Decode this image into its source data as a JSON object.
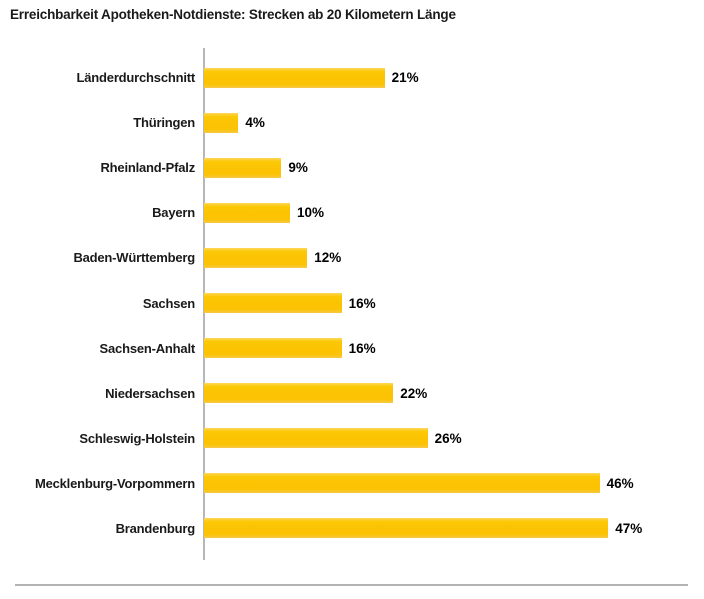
{
  "page": {
    "background": "#ffffff"
  },
  "header": {
    "title": "Erreichbarkeit Apotheken-Notdienste: Strecken ab 20 Kilometern Länge"
  },
  "chart_data": {
    "type": "bar",
    "orientation": "horizontal",
    "title": "Erreichbarkeit Apotheken-Notdienste: Strecken ab 20 Kilometern Länge",
    "categories": [
      "Länderdurchschnitt",
      "Thüringen",
      "Rheinland-Pfalz",
      "Bayern",
      "Baden-Württemberg",
      "Sachsen",
      "Sachsen-Anhalt",
      "Niedersachsen",
      "Schleswig-Holstein",
      "Mecklenburg-Vorpommern",
      "Brandenburg"
    ],
    "values": [
      21,
      4,
      9,
      10,
      12,
      16,
      16,
      22,
      26,
      46,
      47
    ],
    "value_labels": [
      "21%",
      "4%",
      "9%",
      "10%",
      "12%",
      "16%",
      "16%",
      "22%",
      "26%",
      "46%",
      "47%"
    ],
    "unit": "%",
    "xlim": [
      0,
      50
    ],
    "grid": false,
    "legend": false,
    "bar_color": "#FBC303",
    "axis_color": "#B7B7B7",
    "rule_color": "#B3B3B3",
    "label_color": "#1A1A1A",
    "value_color": "#000000"
  }
}
